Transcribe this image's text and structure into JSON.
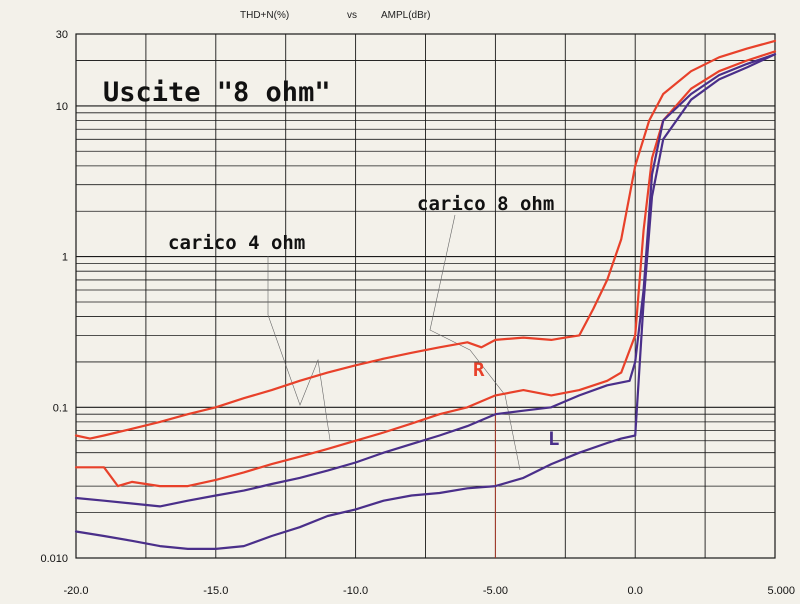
{
  "chart_data": {
    "type": "line",
    "title_y": "THD+N(%)",
    "title_vs": "vs",
    "title_x": "AMPL(dBr)",
    "heading": "Uscite \"8 ohm\"",
    "xlim": [
      -20,
      5
    ],
    "ylim": [
      0.01,
      30
    ],
    "y_scale": "log",
    "grid": true,
    "x_tick_values": [
      -20,
      -15,
      -10,
      -5,
      0,
      5
    ],
    "x_tick_labels": [
      "-20.0",
      "-15.0",
      "-10.0",
      "-5.00",
      "0.0",
      "5.000"
    ],
    "y_tick_values": [
      0.01,
      0.1,
      1,
      10,
      30
    ],
    "y_tick_labels": [
      "0.010",
      "0.1",
      "1",
      "10",
      "30"
    ],
    "annotations": {
      "load_4": "carico 4 ohm",
      "load_8": "carico 8 ohm",
      "right": "R",
      "left": "L"
    },
    "colors": {
      "R": "#e8412a",
      "L": "#4a2f8a",
      "grid": "#1a1a1a",
      "marker": "#a83a2a"
    },
    "series": [
      {
        "channel": "R",
        "x": [
          -20,
          -19.5,
          -19,
          -18,
          -17,
          -16,
          -15,
          -14,
          -13,
          -12,
          -11,
          -10,
          -9,
          -8,
          -7,
          -6,
          -5.5,
          -5,
          -4,
          -3,
          -2.5,
          -2,
          -1.5,
          -1,
          -0.5,
          0,
          0.5,
          1,
          2,
          3,
          4,
          5
        ],
        "y": [
          0.065,
          0.062,
          0.065,
          0.072,
          0.08,
          0.09,
          0.1,
          0.115,
          0.13,
          0.15,
          0.17,
          0.19,
          0.21,
          0.23,
          0.25,
          0.27,
          0.25,
          0.28,
          0.29,
          0.28,
          0.29,
          0.3,
          0.45,
          0.7,
          1.3,
          4,
          8,
          12,
          17,
          21,
          24,
          27
        ]
      },
      {
        "channel": "R",
        "x": [
          -20,
          -19,
          -18.5,
          -18,
          -17,
          -16,
          -15,
          -14,
          -13,
          -12,
          -11,
          -10,
          -9,
          -8,
          -7,
          -6,
          -5,
          -4,
          -3,
          -2,
          -1,
          -0.5,
          0,
          0.3,
          0.6,
          1,
          2,
          3,
          4,
          5
        ],
        "y": [
          0.04,
          0.04,
          0.03,
          0.032,
          0.03,
          0.03,
          0.033,
          0.037,
          0.042,
          0.047,
          0.053,
          0.06,
          0.068,
          0.078,
          0.09,
          0.1,
          0.12,
          0.13,
          0.12,
          0.13,
          0.15,
          0.17,
          0.3,
          1.5,
          4.5,
          8,
          13,
          17,
          20,
          23
        ]
      },
      {
        "channel": "L",
        "x": [
          -20,
          -19,
          -18,
          -17,
          -16,
          -15,
          -14,
          -13,
          -12,
          -11,
          -10,
          -9,
          -8,
          -7,
          -6,
          -5,
          -4,
          -3,
          -2,
          -1,
          -0.2,
          0,
          0.3,
          0.6,
          1,
          2,
          3,
          4,
          5
        ],
        "y": [
          0.025,
          0.024,
          0.023,
          0.022,
          0.024,
          0.026,
          0.028,
          0.031,
          0.034,
          0.038,
          0.043,
          0.05,
          0.057,
          0.065,
          0.075,
          0.09,
          0.095,
          0.1,
          0.12,
          0.14,
          0.15,
          0.2,
          0.6,
          3.5,
          8,
          12,
          16,
          19,
          22
        ]
      },
      {
        "channel": "L",
        "x": [
          -20,
          -19,
          -18,
          -17,
          -16,
          -15,
          -14,
          -13,
          -12,
          -11,
          -10,
          -9,
          -8,
          -7,
          -6,
          -5,
          -4,
          -3,
          -2,
          -1,
          -0.5,
          0,
          0.3,
          0.6,
          1,
          2,
          3,
          4,
          5
        ],
        "y": [
          0.015,
          0.014,
          0.013,
          0.012,
          0.0115,
          0.0115,
          0.012,
          0.014,
          0.016,
          0.019,
          0.021,
          0.024,
          0.026,
          0.027,
          0.029,
          0.03,
          0.034,
          0.042,
          0.05,
          0.058,
          0.062,
          0.065,
          0.5,
          2.5,
          6,
          11,
          15,
          18,
          22
        ]
      }
    ]
  }
}
